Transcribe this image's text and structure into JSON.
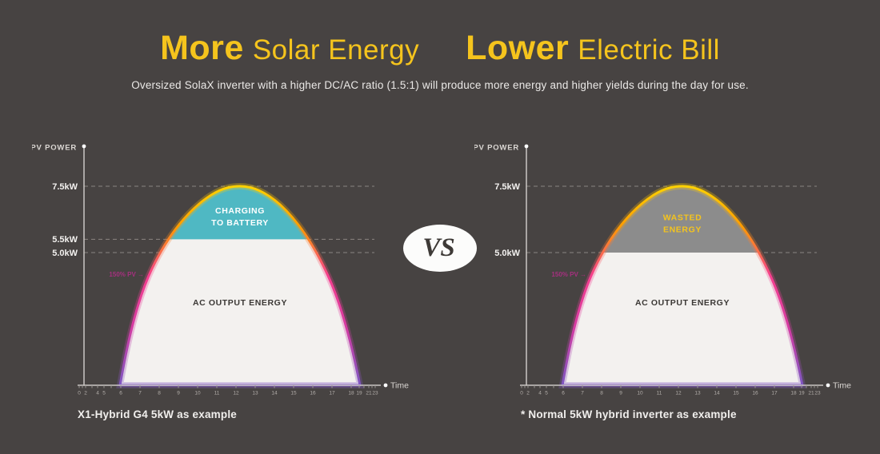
{
  "page": {
    "background": "#474342"
  },
  "header": {
    "accent_color": "#f5c41d",
    "title_parts": [
      {
        "strong": "More",
        "rest": "Solar Energy"
      },
      {
        "strong": "Lower",
        "rest": "Electric Bill"
      }
    ],
    "subtitle": "Oversized SolaX inverter with a higher DC/AC ratio (1.5:1) will produce more energy and higher yields during the day for use."
  },
  "vs_badge": {
    "label": "VS"
  },
  "chart_data": [
    {
      "type": "area",
      "title": "X1-Hybrid G4 5kW as example",
      "ylabel": "PV POWER",
      "xlabel": "Time",
      "x_ticks": [
        "0",
        "2",
        "4",
        "5",
        "6",
        "7",
        "8",
        "9",
        "10",
        "11",
        "12",
        "13",
        "14",
        "15",
        "16",
        "17",
        "18",
        "19",
        "21",
        "23"
      ],
      "y_ticks": [
        {
          "label": "7.5kW",
          "value": 7.5
        },
        {
          "label": "5.5kW",
          "value": 5.5
        },
        {
          "label": "5.0kW",
          "value": 5.0
        }
      ],
      "ylim": [
        0,
        9.0
      ],
      "grid": "dashed",
      "curve": {
        "peak_kw": 7.5,
        "sunrise_hour": 6,
        "sunset_hour": 19,
        "area_color": "#f3f1ef",
        "area_label": "AC OUTPUT ENERGY",
        "area_label_color": "#3b3835",
        "stroke_gradient": [
          "#ffd200",
          "#ff9d00",
          "#f53f8e",
          "#d63ba2",
          "#7e57c2"
        ]
      },
      "band": {
        "label_lines": [
          "CHARGING",
          "TO BATTERY"
        ],
        "from_kw": 5.5,
        "to_kw": 7.5,
        "color": "#4fb8c3",
        "label_color": "#ffffff"
      },
      "annotation": {
        "text": "150% PV →",
        "color": "#a6307f"
      }
    },
    {
      "type": "area",
      "title": "* Normal 5kW hybrid inverter as example",
      "ylabel": "PV POWER",
      "xlabel": "Time",
      "x_ticks": [
        "0",
        "2",
        "4",
        "5",
        "6",
        "7",
        "8",
        "9",
        "10",
        "11",
        "12",
        "13",
        "14",
        "15",
        "16",
        "17",
        "18",
        "19",
        "21",
        "23"
      ],
      "y_ticks": [
        {
          "label": "7.5kW",
          "value": 7.5
        },
        {
          "label": "5.0kW",
          "value": 5.0
        }
      ],
      "ylim": [
        0,
        9.0
      ],
      "grid": "dashed",
      "curve": {
        "peak_kw": 7.5,
        "sunrise_hour": 6,
        "sunset_hour": 19,
        "area_color": "#f3f1ef",
        "area_label": "AC OUTPUT ENERGY",
        "area_label_color": "#3b3835",
        "stroke_gradient": [
          "#ffd200",
          "#ff9d00",
          "#f53f8e",
          "#d63ba2",
          "#7e57c2"
        ]
      },
      "band": {
        "label_lines": [
          "WASTED",
          "ENERGY"
        ],
        "from_kw": 5.0,
        "to_kw": 7.5,
        "color": "#8c8c8c",
        "label_color": "#f5c41d"
      },
      "annotation": {
        "text": "150% PV →",
        "color": "#a6307f"
      }
    }
  ]
}
